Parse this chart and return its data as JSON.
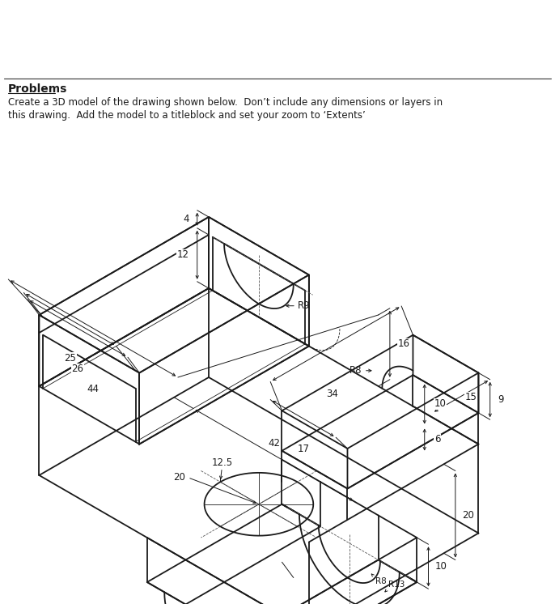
{
  "bg_color": "#ffffff",
  "line_color": "#1a1a1a",
  "lw": 1.3,
  "dlw": 0.7,
  "tlw": 0.6,
  "fs": 8.5,
  "title": "Problems",
  "body1": "Create a 3D model of the drawing shown below.  Don’t include any dimensions or layers in",
  "body2": "this drawing.  Add the model to a titleblock and set your zoom to ‘Extents’"
}
